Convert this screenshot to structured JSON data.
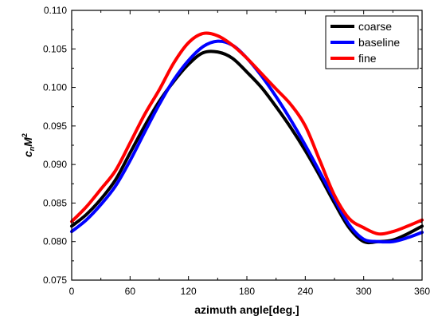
{
  "chart_data": {
    "type": "line",
    "xlabel": "azimuth angle[deg.]",
    "ylabel": {
      "base": "c",
      "sub": "n",
      "main": "M",
      "sup": "2"
    },
    "xlim": [
      0,
      360
    ],
    "ylim": [
      0.075,
      0.11
    ],
    "x_ticks": [
      0,
      60,
      120,
      180,
      240,
      300,
      360
    ],
    "y_ticks": [
      0.075,
      0.08,
      0.085,
      0.09,
      0.095,
      0.1,
      0.105,
      0.11
    ],
    "x_tick_labels": [
      "0",
      "60",
      "120",
      "180",
      "240",
      "300",
      "360"
    ],
    "y_tick_labels": [
      "0.075",
      "0.080",
      "0.085",
      "0.090",
      "0.095",
      "0.100",
      "0.105",
      "0.110"
    ],
    "grid": false,
    "legend_position": "top-right",
    "x": [
      0,
      15,
      30,
      45,
      60,
      75,
      90,
      105,
      120,
      135,
      150,
      165,
      180,
      195,
      210,
      225,
      240,
      255,
      270,
      285,
      300,
      315,
      330,
      345,
      360
    ],
    "series": [
      {
        "name": "coarse",
        "color": "#000000",
        "values": [
          0.082,
          0.0835,
          0.0855,
          0.088,
          0.0915,
          0.095,
          0.0982,
          0.1008,
          0.103,
          0.1045,
          0.1046,
          0.1038,
          0.102,
          0.1,
          0.0975,
          0.0948,
          0.0918,
          0.0885,
          0.085,
          0.0818,
          0.08,
          0.08,
          0.0802,
          0.081,
          0.082
        ]
      },
      {
        "name": "baseline",
        "color": "#0000ff",
        "values": [
          0.0813,
          0.0828,
          0.0848,
          0.0872,
          0.0905,
          0.0942,
          0.0978,
          0.101,
          0.1035,
          0.1053,
          0.106,
          0.1055,
          0.1038,
          0.1015,
          0.0988,
          0.0958,
          0.0925,
          0.089,
          0.0855,
          0.0822,
          0.0803,
          0.08,
          0.08,
          0.0805,
          0.0812
        ]
      },
      {
        "name": "fine",
        "color": "#ff0000",
        "values": [
          0.0826,
          0.0845,
          0.0868,
          0.0892,
          0.0928,
          0.0965,
          0.0997,
          0.1032,
          0.1058,
          0.107,
          0.1067,
          0.1055,
          0.1038,
          0.1018,
          0.0998,
          0.0978,
          0.095,
          0.0905,
          0.086,
          0.083,
          0.0818,
          0.081,
          0.0813,
          0.082,
          0.0828
        ]
      }
    ]
  }
}
